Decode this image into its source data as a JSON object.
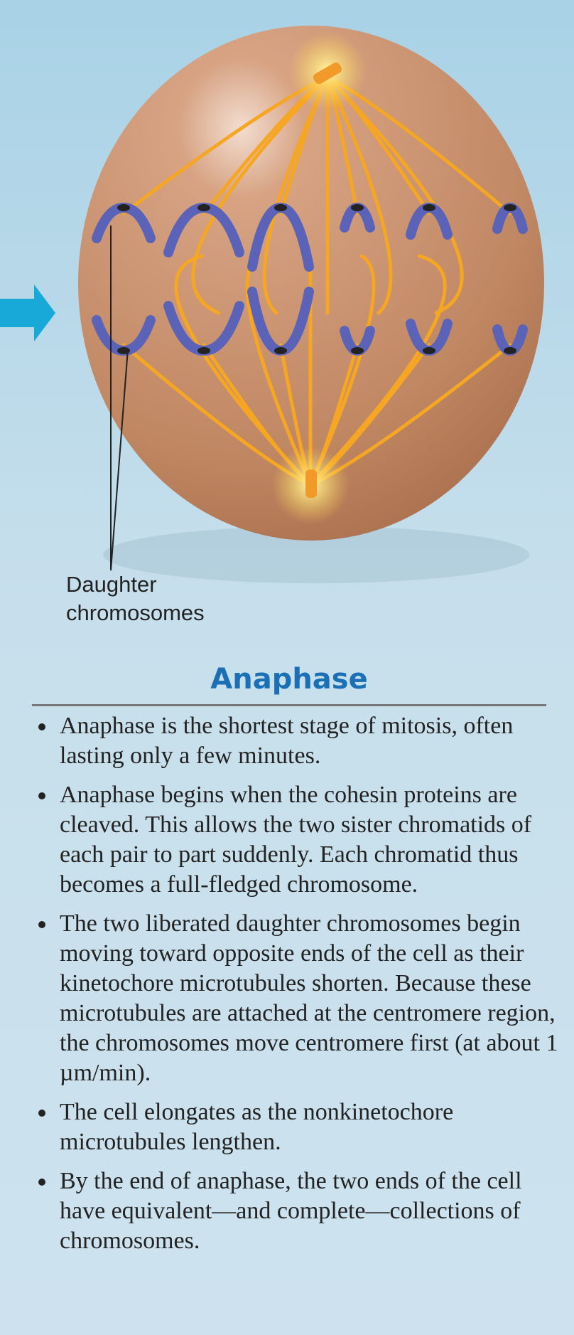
{
  "diagram": {
    "label": [
      "Daughter",
      "chromosomes"
    ]
  },
  "section": {
    "title": "Anaphase",
    "bullets": [
      "Anaphase is the shortest stage of mitosis, often lasting only a few minutes.",
      "Anaphase begins when the cohesin proteins are cleaved. This allows the two sister chromatids of each pair to part suddenly. Each chromatid thus becomes a full-fledged chromosome.",
      "The two liberated daughter chromosomes begin moving toward opposite ends of the cell as their kinetochore microtubules shorten. Because these microtubules are attached at the centromere region, the chromosomes move centromere first (at about 1 µm/min).",
      "The cell elongates as the nonkinetochore microtubules lengthen.",
      "By the end of anaphase, the two ends of the cell have equivalent—and complete—collections of chromosomes."
    ]
  }
}
